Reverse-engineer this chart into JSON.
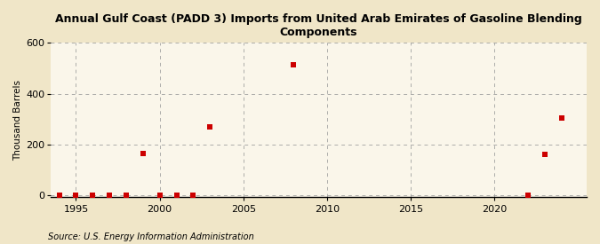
{
  "title": "Annual Gulf Coast (PADD 3) Imports from United Arab Emirates of Gasoline Blending\nComponents",
  "ylabel": "Thousand Barrels",
  "source": "Source: U.S. Energy Information Administration",
  "background_color": "#f0e6c8",
  "plot_background_color": "#faf6ea",
  "marker_color": "#cc0000",
  "marker_size": 4,
  "xlim": [
    1993.5,
    2025.5
  ],
  "ylim": [
    -8,
    600
  ],
  "yticks": [
    0,
    200,
    400,
    600
  ],
  "xticks": [
    1995,
    2000,
    2005,
    2010,
    2015,
    2020
  ],
  "years": [
    1994,
    1995,
    1996,
    1997,
    1998,
    1999,
    2000,
    2001,
    2002,
    2003,
    2008,
    2022,
    2023,
    2024
  ],
  "values": [
    1,
    1,
    1,
    1,
    1,
    163,
    1,
    1,
    1,
    270,
    514,
    1,
    160,
    306
  ]
}
